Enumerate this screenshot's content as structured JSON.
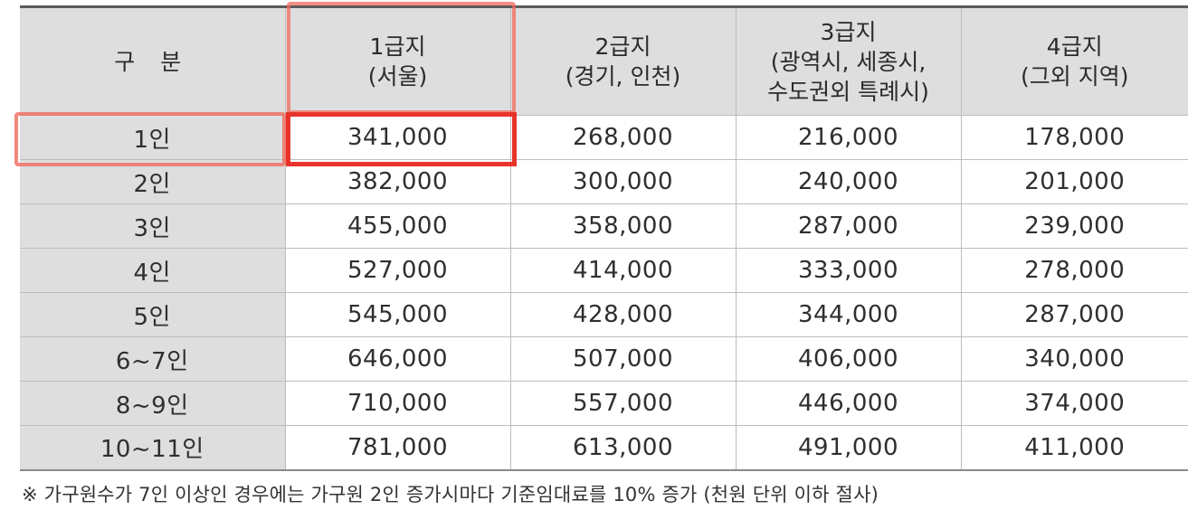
{
  "table": {
    "corner_label": "구 분",
    "columns": [
      {
        "line1": "1급지",
        "line2": "(서울)",
        "line3": ""
      },
      {
        "line1": "2급지",
        "line2": "(경기, 인천)",
        "line3": ""
      },
      {
        "line1": "3급지",
        "line2": "(광역시, 세종시,",
        "line3": "수도권외 특례시)"
      },
      {
        "line1": "4급지",
        "line2": "(그외 지역)",
        "line3": ""
      }
    ],
    "rows": [
      {
        "label": "1인",
        "values": [
          "341,000",
          "268,000",
          "216,000",
          "178,000"
        ]
      },
      {
        "label": "2인",
        "values": [
          "382,000",
          "300,000",
          "240,000",
          "201,000"
        ]
      },
      {
        "label": "3인",
        "values": [
          "455,000",
          "358,000",
          "287,000",
          "239,000"
        ]
      },
      {
        "label": "4인",
        "values": [
          "527,000",
          "414,000",
          "333,000",
          "278,000"
        ]
      },
      {
        "label": "5인",
        "values": [
          "545,000",
          "428,000",
          "344,000",
          "287,000"
        ]
      },
      {
        "label": "6~7인",
        "values": [
          "646,000",
          "507,000",
          "406,000",
          "340,000"
        ]
      },
      {
        "label": "8~9인",
        "values": [
          "710,000",
          "557,000",
          "446,000",
          "374,000"
        ]
      },
      {
        "label": "10~11인",
        "values": [
          "781,000",
          "613,000",
          "491,000",
          "411,000"
        ]
      }
    ]
  },
  "footnote": "※ 가구원수가 7인 이상인 경우에는 가구원 2인 증가시마다 기준임대료를 10% 증가 (천원 단위 이하 절사)",
  "highlight": {
    "color": "#e8332b"
  }
}
